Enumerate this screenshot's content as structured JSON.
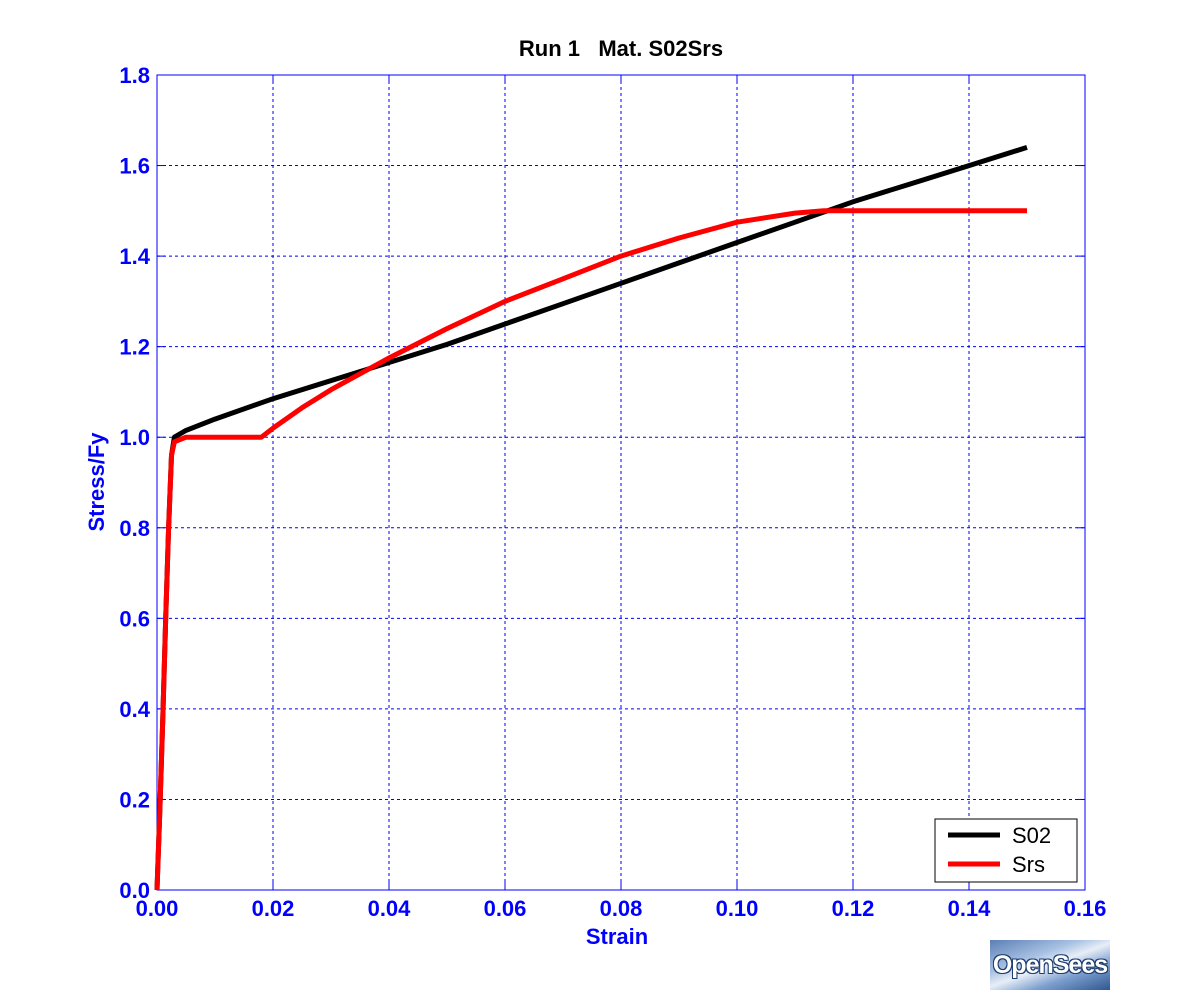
{
  "chart_data": {
    "type": "line",
    "title": "Run 1   Mat. S02Srs",
    "xlabel": "Strain",
    "ylabel": "Stress/Fy",
    "xlim": [
      0,
      0.16
    ],
    "ylim": [
      0,
      1.8
    ],
    "xticks": [
      "0.00",
      "0.02",
      "0.04",
      "0.06",
      "0.08",
      "0.10",
      "0.12",
      "0.14",
      "0.16"
    ],
    "yticks": [
      "0.0",
      "0.2",
      "0.4",
      "0.6",
      "0.8",
      "1.0",
      "1.2",
      "1.4",
      "1.6",
      "1.8"
    ],
    "grid": true,
    "legend_position": "bottom-right",
    "series": [
      {
        "name": "S02",
        "color": "#000000",
        "x": [
          0,
          0.0005,
          0.001,
          0.0015,
          0.002,
          0.0025,
          0.003,
          0.005,
          0.01,
          0.02,
          0.03,
          0.04,
          0.05,
          0.06,
          0.07,
          0.08,
          0.09,
          0.1,
          0.11,
          0.12,
          0.13,
          0.14,
          0.15
        ],
        "y": [
          0,
          0.18,
          0.38,
          0.6,
          0.8,
          0.96,
          1.0,
          1.015,
          1.04,
          1.085,
          1.125,
          1.165,
          1.205,
          1.25,
          1.295,
          1.34,
          1.385,
          1.43,
          1.475,
          1.52,
          1.56,
          1.6,
          1.64
        ]
      },
      {
        "name": "Srs",
        "color": "#ff0000",
        "x": [
          0,
          0.0005,
          0.001,
          0.0015,
          0.002,
          0.0025,
          0.003,
          0.005,
          0.01,
          0.015,
          0.018,
          0.02,
          0.025,
          0.03,
          0.035,
          0.04,
          0.05,
          0.06,
          0.07,
          0.08,
          0.09,
          0.1,
          0.11,
          0.115,
          0.12,
          0.13,
          0.14,
          0.15
        ],
        "y": [
          0,
          0.18,
          0.38,
          0.6,
          0.8,
          0.96,
          0.99,
          1.0,
          1.0,
          1.0,
          1.0,
          1.02,
          1.065,
          1.105,
          1.14,
          1.175,
          1.24,
          1.3,
          1.35,
          1.4,
          1.44,
          1.475,
          1.495,
          1.5,
          1.5,
          1.5,
          1.5,
          1.5
        ]
      }
    ]
  },
  "logo": {
    "text": "OpenSees"
  }
}
